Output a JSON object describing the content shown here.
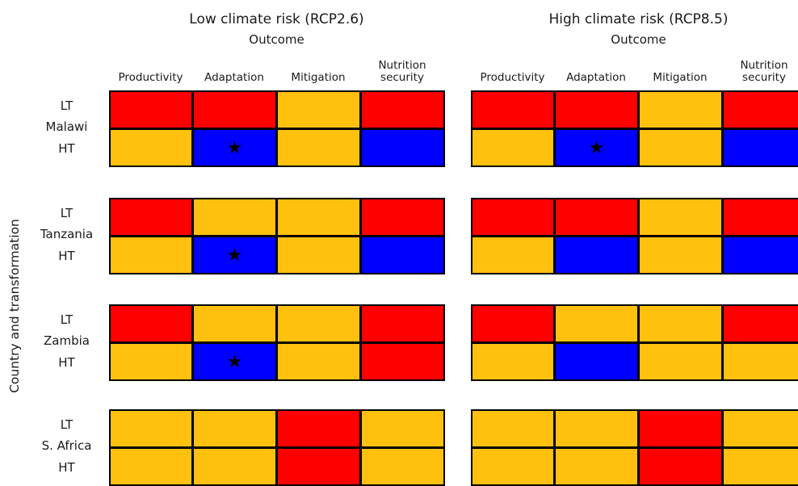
{
  "chart_data": {
    "type": "heatmap",
    "ylabel": "Country and transformation",
    "column_group_label": "Outcome",
    "columns": [
      "Productivity",
      "Adaptation",
      "Mitigation",
      "Nutrition security"
    ],
    "countries": [
      "Malawi",
      "Tanzania",
      "Zambia",
      "S. Africa"
    ],
    "transformations": [
      "LT",
      "HT"
    ],
    "colors": {
      "red": "#fe0000",
      "amber": "#ffc00e",
      "blue": "#0000ff"
    },
    "marker": "★",
    "panels": [
      {
        "title": "Low climate risk (RCP2.6)",
        "subtitle": "Outcome",
        "cells": [
          [
            [
              "red",
              "red",
              "amber",
              "red"
            ],
            [
              "amber",
              "blue",
              "amber",
              "blue"
            ]
          ],
          [
            [
              "red",
              "amber",
              "amber",
              "red"
            ],
            [
              "amber",
              "blue",
              "amber",
              "blue"
            ]
          ],
          [
            [
              "red",
              "amber",
              "amber",
              "red"
            ],
            [
              "amber",
              "blue",
              "amber",
              "red"
            ]
          ],
          [
            [
              "amber",
              "amber",
              "red",
              "amber"
            ],
            [
              "amber",
              "amber",
              "red",
              "amber"
            ]
          ]
        ],
        "stars": [
          [
            0,
            1,
            1
          ],
          [
            1,
            1,
            1
          ],
          [
            2,
            1,
            1
          ]
        ]
      },
      {
        "title": "High climate risk (RCP8.5)",
        "subtitle": "Outcome",
        "cells": [
          [
            [
              "red",
              "red",
              "amber",
              "red"
            ],
            [
              "amber",
              "blue",
              "amber",
              "blue"
            ]
          ],
          [
            [
              "red",
              "red",
              "amber",
              "red"
            ],
            [
              "amber",
              "blue",
              "amber",
              "blue"
            ]
          ],
          [
            [
              "red",
              "amber",
              "amber",
              "red"
            ],
            [
              "amber",
              "blue",
              "amber",
              "amber"
            ]
          ],
          [
            [
              "amber",
              "amber",
              "red",
              "amber"
            ],
            [
              "amber",
              "amber",
              "red",
              "amber"
            ]
          ]
        ],
        "stars": [
          [
            0,
            1,
            1
          ]
        ]
      }
    ]
  }
}
